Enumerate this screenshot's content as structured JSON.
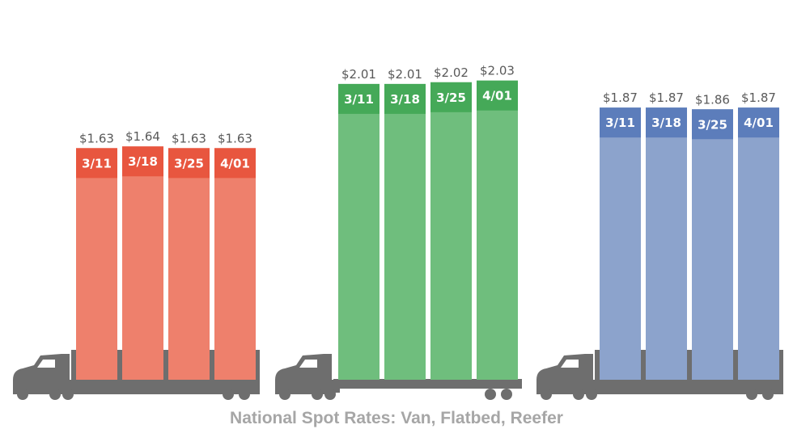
{
  "chart_data": {
    "type": "bar",
    "title": "National Spot Rates: Van, Flatbed, Reefer",
    "unit": "$",
    "ylim": [
      0,
      2.5
    ],
    "grid": false,
    "legend": "none",
    "series": [
      {
        "categories": [
          "3/11",
          "3/18",
          "3/25",
          "4/01"
        ],
        "values": [
          1.63,
          1.64,
          1.63,
          1.63
        ],
        "labels": [
          "$1.63",
          "$1.64",
          "$1.63",
          "$1.63"
        ],
        "color": "#ee806c",
        "header_color": "#e8563f",
        "truck_trailer": "van"
      },
      {
        "categories": [
          "3/11",
          "3/18",
          "3/25",
          "4/01"
        ],
        "values": [
          2.01,
          2.01,
          2.02,
          2.03
        ],
        "labels": [
          "$2.01",
          "$2.01",
          "$2.02",
          "$2.03"
        ],
        "color": "#6fbe7d",
        "header_color": "#45a958",
        "truck_trailer": "flatbed"
      },
      {
        "categories": [
          "3/11",
          "3/18",
          "3/25",
          "4/01"
        ],
        "values": [
          1.87,
          1.87,
          1.86,
          1.87
        ],
        "labels": [
          "$1.87",
          "$1.87",
          "$1.86",
          "$1.87"
        ],
        "color": "#8ca3cc",
        "header_color": "#5c7dbb",
        "truck_trailer": "van"
      }
    ]
  },
  "colors": {
    "truck": "#6e6e6e",
    "caption": "#a6a6a6"
  },
  "icons": [
    "truck-icon",
    "truck-icon",
    "truck-icon"
  ]
}
